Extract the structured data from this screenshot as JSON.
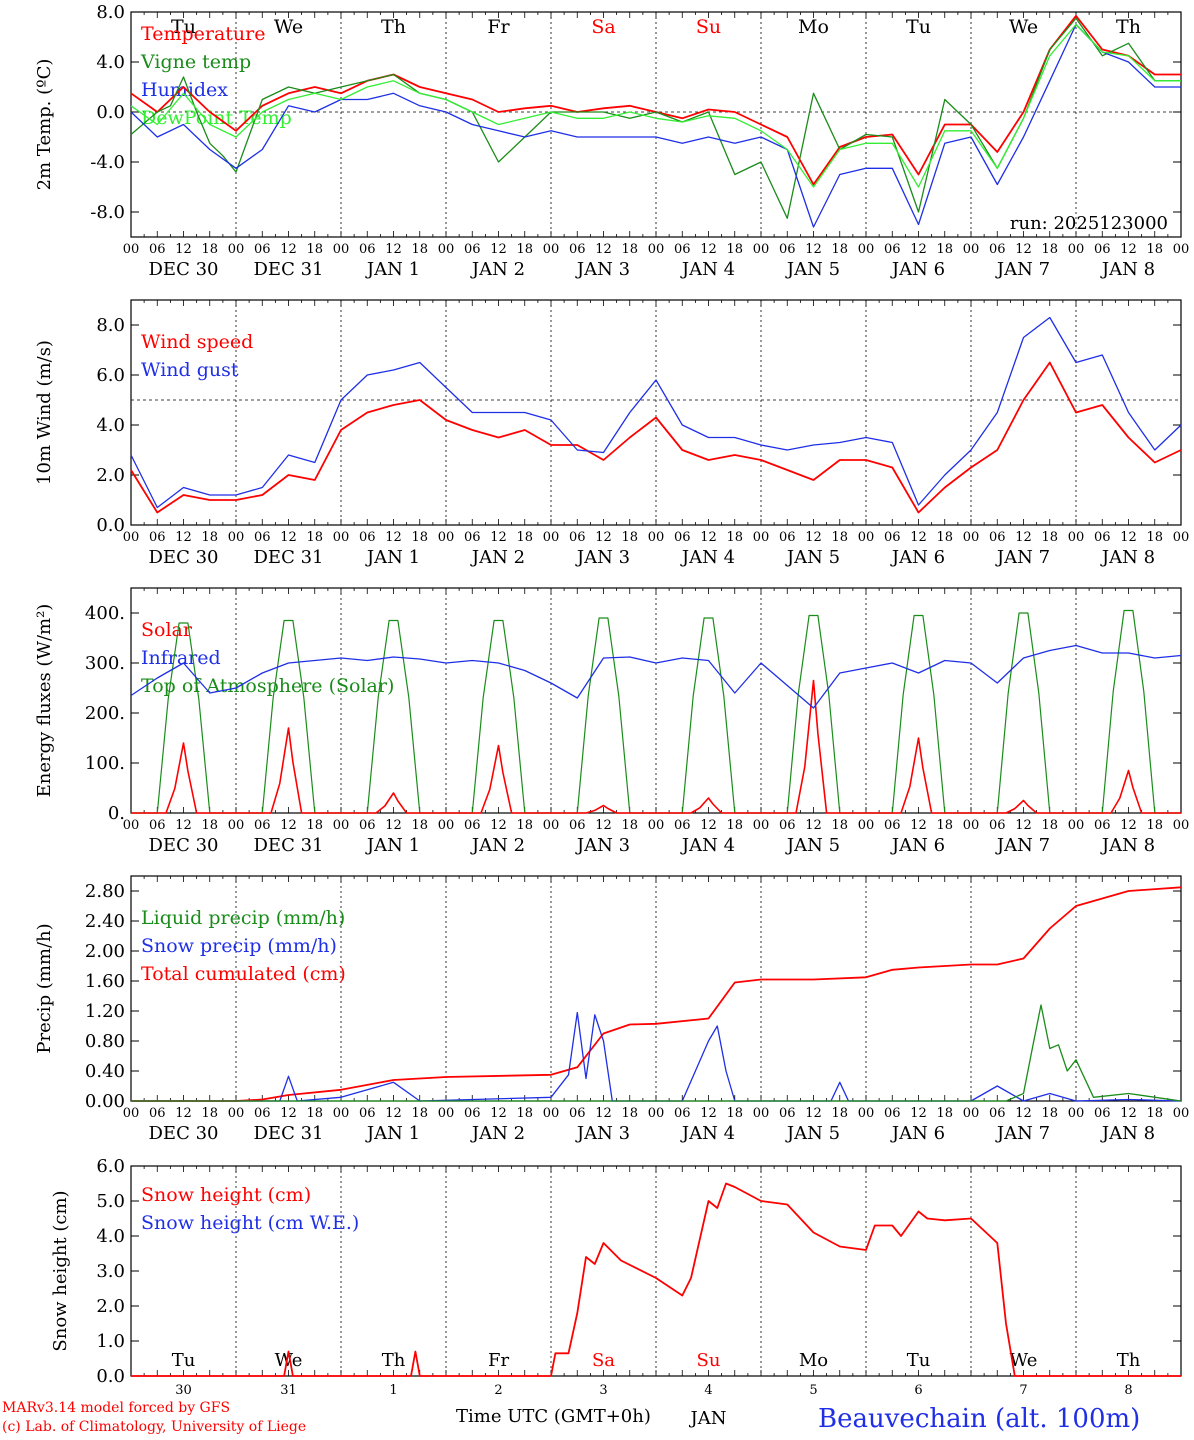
{
  "footer": {
    "model_line": "MARv3.14 model forced by GFS",
    "credit_line": "(c) Lab. of Climatology, University of Liege",
    "station": "Beauvechain (alt. 100m)",
    "xaxis_title": "Time UTC (GMT+0h)",
    "run_label": "run: 2025123000"
  },
  "colors": {
    "red": "#ff0000",
    "green": "#1a8c1a",
    "blue": "#1f2fe6",
    "lightgreen": "#33ee33",
    "weekend": "#ff0000"
  },
  "chart_data": [
    {
      "type": "line",
      "id": "temperature",
      "ylabel": "2m Temp. (ºC)",
      "ylim": [
        -10,
        8
      ],
      "yticks": [
        "8.0",
        "4.0",
        "0.0",
        "-4.0",
        "-8.0"
      ],
      "ytick_values": [
        8,
        4,
        0,
        -4,
        -8
      ],
      "reference_line": 0,
      "grid": false,
      "days_top": [
        "Tu",
        "We",
        "Th",
        "Fr",
        "Sa",
        "Su",
        "Mo",
        "Tu",
        "We",
        "Th"
      ],
      "weekend_days": [
        4,
        5
      ],
      "hour_ticks": [
        "00",
        "06",
        "12",
        "18"
      ],
      "date_labels": [
        "DEC 30",
        "DEC 31",
        "JAN  1",
        "JAN  2",
        "JAN  3",
        "JAN  4",
        "JAN  5",
        "JAN  6",
        "JAN  7",
        "JAN  8"
      ],
      "legend": [
        "Temperature",
        "Vigne temp",
        "Humidex",
        "DewPoint Temp"
      ],
      "series": [
        {
          "name": "Temperature",
          "color": "red",
          "x": [
            0,
            6,
            12,
            18,
            24,
            30,
            36,
            42,
            48,
            54,
            60,
            66,
            72,
            78,
            84,
            90,
            96,
            102,
            108,
            114,
            120,
            126,
            132,
            138,
            144,
            150,
            156,
            162,
            168,
            174,
            180,
            186,
            192,
            198,
            204,
            210,
            216,
            222,
            228,
            234,
            240
          ],
          "y": [
            1.5,
            0,
            2,
            0,
            -1.5,
            0.5,
            1.5,
            2,
            1.5,
            2.5,
            3,
            2,
            1.5,
            1,
            0,
            0.3,
            0.5,
            0,
            0.3,
            0.5,
            0,
            -0.5,
            0.2,
            0,
            -1,
            -2,
            -5.8,
            -2.8,
            -2,
            -1.8,
            -5,
            -1,
            -1,
            -3.2,
            0,
            5,
            7.7,
            5,
            4.5,
            3,
            3
          ]
        },
        {
          "name": "Vigne temp",
          "color": "green",
          "x": [
            0,
            6,
            9,
            12,
            15,
            18,
            21,
            24,
            30,
            36,
            42,
            48,
            54,
            60,
            66,
            72,
            78,
            84,
            90,
            96,
            102,
            108,
            114,
            120,
            126,
            132,
            138,
            144,
            150,
            156,
            162,
            168,
            174,
            180,
            186,
            192,
            198,
            204,
            210,
            216,
            222,
            228,
            234,
            240
          ],
          "y": [
            -1.8,
            0,
            0.5,
            2.8,
            0,
            -2.5,
            -3.5,
            -4.8,
            1,
            2,
            1.5,
            2,
            2.5,
            3,
            1.5,
            1,
            0,
            -4,
            -2,
            0,
            0,
            0,
            -0.5,
            0,
            -0.8,
            0,
            -5,
            -4,
            -8.5,
            1.5,
            -3,
            -1.8,
            -2,
            -8,
            1,
            -1,
            -4.5,
            -0.5,
            5,
            7.5,
            4.5,
            5.5,
            2.5,
            2.5
          ]
        },
        {
          "name": "Humidex",
          "color": "blue",
          "x": [
            0,
            6,
            12,
            18,
            24,
            30,
            36,
            42,
            48,
            54,
            60,
            66,
            72,
            78,
            84,
            90,
            96,
            102,
            108,
            114,
            120,
            126,
            132,
            138,
            144,
            150,
            156,
            162,
            168,
            174,
            180,
            186,
            192,
            198,
            204,
            210,
            216,
            222,
            228,
            234,
            240
          ],
          "y": [
            0,
            -2,
            -1,
            -3,
            -4.5,
            -3,
            0.5,
            0,
            1,
            1,
            1.5,
            0.5,
            0,
            -1,
            -1.5,
            -2,
            -1.5,
            -2,
            -2,
            -2,
            -2,
            -2.5,
            -2,
            -2.5,
            -2,
            -3,
            -9.2,
            -5,
            -4.5,
            -4.5,
            -9,
            -2.5,
            -2,
            -5.8,
            -2,
            2.5,
            7,
            4.8,
            4,
            2,
            2
          ]
        },
        {
          "name": "DewPoint Temp",
          "color": "lightgreen",
          "x": [
            0,
            6,
            12,
            18,
            24,
            30,
            36,
            42,
            48,
            54,
            60,
            66,
            72,
            78,
            84,
            90,
            96,
            102,
            108,
            114,
            120,
            126,
            132,
            138,
            144,
            150,
            156,
            162,
            168,
            174,
            180,
            186,
            192,
            198,
            204,
            210,
            216,
            222,
            228,
            234,
            240
          ],
          "y": [
            0.5,
            -1,
            1.5,
            -1,
            -2,
            0,
            1,
            1.5,
            1,
            2,
            2.5,
            1.5,
            1,
            0,
            -1,
            -0.5,
            0,
            -0.5,
            -0.5,
            0,
            -0.5,
            -0.8,
            -0.3,
            -0.5,
            -1.5,
            -3,
            -6,
            -3,
            -2.5,
            -2.5,
            -6,
            -1.5,
            -1.5,
            -4.5,
            -0.5,
            4.5,
            7,
            4.8,
            4.5,
            2.5,
            2.5
          ]
        }
      ]
    },
    {
      "type": "line",
      "id": "wind",
      "ylabel": "10m Wind (m/s)",
      "ylim": [
        0,
        9
      ],
      "yticks": [
        "8.0",
        "6.0",
        "4.0",
        "2.0",
        "0.0"
      ],
      "ytick_values": [
        8,
        6,
        4,
        2,
        0
      ],
      "reference_line": 5,
      "grid": false,
      "hour_ticks": [
        "00",
        "06",
        "12",
        "18"
      ],
      "date_labels": [
        "DEC 30",
        "DEC 31",
        "JAN  1",
        "JAN  2",
        "JAN  3",
        "JAN  4",
        "JAN  5",
        "JAN  6",
        "JAN  7",
        "JAN  8"
      ],
      "legend": [
        "Wind speed",
        "Wind gust"
      ],
      "series": [
        {
          "name": "Wind speed",
          "color": "red",
          "x": [
            0,
            6,
            12,
            18,
            24,
            30,
            36,
            42,
            48,
            54,
            60,
            66,
            72,
            78,
            84,
            90,
            96,
            102,
            108,
            114,
            120,
            126,
            132,
            138,
            144,
            150,
            156,
            162,
            168,
            174,
            180,
            186,
            192,
            198,
            204,
            210,
            216,
            222,
            228,
            234,
            240
          ],
          "y": [
            2.2,
            0.5,
            1.2,
            1,
            1,
            1.2,
            2,
            1.8,
            3.8,
            4.5,
            4.8,
            5,
            4.2,
            3.8,
            3.5,
            3.8,
            3.2,
            3.2,
            2.6,
            3.5,
            4.3,
            3,
            2.6,
            2.8,
            2.6,
            2.2,
            1.8,
            2.6,
            2.6,
            2.3,
            0.5,
            1.5,
            2.3,
            3,
            5,
            6.5,
            4.5,
            4.8,
            3.5,
            2.5,
            3
          ]
        },
        {
          "name": "Wind gust",
          "color": "blue",
          "x": [
            0,
            6,
            12,
            18,
            24,
            30,
            36,
            42,
            48,
            54,
            60,
            66,
            72,
            78,
            84,
            90,
            96,
            102,
            108,
            114,
            120,
            126,
            132,
            138,
            144,
            150,
            156,
            162,
            168,
            174,
            180,
            186,
            192,
            198,
            204,
            210,
            216,
            222,
            228,
            234,
            240
          ],
          "y": [
            2.8,
            0.7,
            1.5,
            1.2,
            1.2,
            1.5,
            2.8,
            2.5,
            5,
            6,
            6.2,
            6.5,
            5.5,
            4.5,
            4.5,
            4.5,
            4.2,
            3,
            2.9,
            4.5,
            5.8,
            4,
            3.5,
            3.5,
            3.2,
            3,
            3.2,
            3.3,
            3.5,
            3.3,
            0.8,
            2,
            3,
            4.5,
            7.5,
            8.3,
            6.5,
            6.8,
            4.5,
            3,
            4
          ]
        }
      ]
    },
    {
      "type": "line",
      "id": "energy",
      "ylabel": "Energy fluxes (W/m²)",
      "ylim": [
        0,
        450
      ],
      "yticks": [
        "400.",
        "300.",
        "200.",
        "100.",
        "0."
      ],
      "ytick_values": [
        400,
        300,
        200,
        100,
        0
      ],
      "grid": false,
      "hour_ticks": [
        "00",
        "06",
        "12",
        "18"
      ],
      "date_labels": [
        "DEC 30",
        "DEC 31",
        "JAN  1",
        "JAN  2",
        "JAN  3",
        "JAN  4",
        "JAN  5",
        "JAN  6",
        "JAN  7",
        "JAN  8"
      ],
      "legend": [
        "Solar",
        "Infrared",
        "Top of Atmosphere (Solar)"
      ],
      "toa_peak": [
        380,
        385,
        385,
        385,
        390,
        390,
        395,
        395,
        400,
        405
      ],
      "solar_peak": [
        140,
        170,
        40,
        135,
        15,
        30,
        265,
        150,
        25,
        85
      ],
      "series": [
        {
          "name": "Infrared",
          "color": "blue",
          "x": [
            0,
            6,
            12,
            18,
            24,
            30,
            36,
            42,
            48,
            54,
            60,
            66,
            72,
            78,
            84,
            90,
            96,
            102,
            108,
            114,
            120,
            126,
            132,
            138,
            144,
            150,
            156,
            162,
            168,
            174,
            180,
            186,
            192,
            198,
            204,
            210,
            216,
            222,
            228,
            234,
            240
          ],
          "y": [
            235,
            270,
            300,
            240,
            250,
            280,
            300,
            305,
            310,
            305,
            312,
            308,
            300,
            305,
            300,
            285,
            260,
            230,
            310,
            312,
            300,
            310,
            305,
            240,
            300,
            255,
            210,
            280,
            290,
            300,
            280,
            305,
            300,
            260,
            310,
            325,
            335,
            320,
            320,
            310,
            315
          ]
        }
      ]
    },
    {
      "type": "line",
      "id": "precip",
      "ylabel": "Precip (mm/h)",
      "ylim": [
        0,
        3.0
      ],
      "yticks": [
        "2.80",
        "2.40",
        "2.00",
        "1.60",
        "1.20",
        "0.80",
        "0.40",
        "0.00"
      ],
      "ytick_values": [
        2.8,
        2.4,
        2.0,
        1.6,
        1.2,
        0.8,
        0.4,
        0
      ],
      "grid": false,
      "hour_ticks": [
        "00",
        "06",
        "12",
        "18"
      ],
      "date_labels": [
        "DEC 30",
        "DEC 31",
        "JAN  1",
        "JAN  2",
        "JAN  3",
        "JAN  4",
        "JAN  5",
        "JAN  6",
        "JAN  7",
        "JAN  8"
      ],
      "legend": [
        "Liquid precip (mm/h)",
        "Snow precip (mm/h)",
        "Total cumulated (cm)"
      ],
      "series": [
        {
          "name": "Total cumulated (cm)",
          "color": "red",
          "x": [
            0,
            24,
            30,
            36,
            48,
            60,
            72,
            96,
            102,
            108,
            114,
            120,
            132,
            138,
            144,
            156,
            168,
            174,
            180,
            192,
            198,
            204,
            210,
            216,
            228,
            240
          ],
          "y": [
            0,
            0,
            0.02,
            0.08,
            0.15,
            0.28,
            0.32,
            0.35,
            0.45,
            0.9,
            1.02,
            1.03,
            1.1,
            1.58,
            1.62,
            1.62,
            1.65,
            1.75,
            1.78,
            1.82,
            1.82,
            1.9,
            2.3,
            2.6,
            2.8,
            2.85
          ]
        },
        {
          "name": "Snow precip (mm/h)",
          "color": "blue",
          "x": [
            0,
            24,
            34,
            36,
            38,
            48,
            60,
            66,
            96,
            100,
            102,
            104,
            106,
            108,
            110,
            114,
            120,
            126,
            132,
            134,
            136,
            138,
            144,
            160,
            162,
            164,
            180,
            192,
            198,
            204,
            210,
            216,
            228,
            240
          ],
          "y": [
            0,
            0,
            0,
            0.33,
            0,
            0.05,
            0.25,
            0,
            0.05,
            0.35,
            1.18,
            0.3,
            1.15,
            0.8,
            0,
            0,
            0,
            0,
            0.8,
            1.0,
            0.4,
            0,
            0,
            0,
            0.25,
            0,
            0,
            0,
            0.2,
            0,
            0.1,
            0,
            0.02,
            0
          ]
        },
        {
          "name": "Liquid precip (mm/h)",
          "color": "green",
          "x": [
            0,
            200,
            204,
            206,
            208,
            210,
            212,
            214,
            216,
            220,
            228,
            240
          ],
          "y": [
            0,
            0,
            0.1,
            0.7,
            1.28,
            0.7,
            0.75,
            0.4,
            0.55,
            0.05,
            0.1,
            0
          ]
        }
      ]
    },
    {
      "type": "line",
      "id": "snow",
      "ylabel": "Snow height (cm)",
      "ylim": [
        0,
        6
      ],
      "yticks": [
        "6.0",
        "5.0",
        "4.0",
        "3.0",
        "2.0",
        "1.0",
        "0.0"
      ],
      "ytick_values": [
        6,
        5,
        4,
        3,
        2,
        1,
        0
      ],
      "grid": false,
      "days_inside": [
        "Tu",
        "We",
        "Th",
        "Fr",
        "Sa",
        "Su",
        "Mo",
        "Tu",
        "We",
        "Th"
      ],
      "weekend_days": [
        4,
        5
      ],
      "date_numbers": [
        "30",
        "31",
        "1",
        "2",
        "3",
        "4",
        "5",
        "6",
        "7",
        "8"
      ],
      "month_label": "JAN",
      "legend": [
        "Snow height (cm)",
        "Snow height (cm W.E.)"
      ],
      "series": [
        {
          "name": "Snow height (cm)",
          "color": "red",
          "x": [
            0,
            35,
            36,
            37,
            64,
            65,
            66,
            96,
            97,
            100,
            102,
            104,
            106,
            108,
            112,
            120,
            126,
            128,
            132,
            134,
            136,
            138,
            144,
            150,
            156,
            162,
            168,
            170,
            174,
            176,
            180,
            182,
            186,
            192,
            198,
            200,
            202,
            240
          ],
          "y": [
            0,
            0,
            0.7,
            0,
            0,
            0.7,
            0,
            0,
            0.65,
            0.65,
            1.8,
            3.4,
            3.2,
            3.8,
            3.3,
            2.8,
            2.3,
            2.8,
            5,
            4.8,
            5.5,
            5.4,
            5,
            4.9,
            4.1,
            3.7,
            3.6,
            4.3,
            4.3,
            4.0,
            4.7,
            4.5,
            4.45,
            4.5,
            3.8,
            1.5,
            0,
            0
          ]
        }
      ]
    }
  ]
}
